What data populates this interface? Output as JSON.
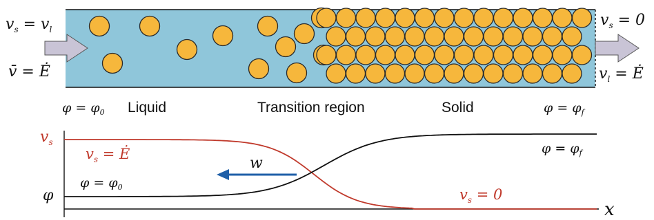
{
  "top_panel": {
    "inlet_velocity_eq": "v_s = v_l",
    "inlet_mean_eq": "v̄ = Ė",
    "outlet_solid_eq": "v_s = 0",
    "outlet_liquid_eq": "v_l = Ė",
    "phi_inlet": "φ = φ_0",
    "phi_outlet": "φ = φ_f",
    "region_liquid": "Liquid",
    "region_transition": "Transition region",
    "region_solid": "Solid"
  },
  "bottom_panel": {
    "y_label_vs": "v_s",
    "y_label_phi": "φ",
    "x_label": "x",
    "vs_left": "v_s = Ė",
    "vs_right": "v_s = 0",
    "phi_left": "φ = φ_0",
    "phi_right": "φ = φ_f",
    "front_velocity": "w"
  },
  "colors": {
    "liquid": "#8fc6da",
    "particle": "#f6b73c",
    "particle_outline": "#2a2a2a",
    "arrow": "#c9c4d6",
    "vs_curve": "#c0392b",
    "phi_curve": "#111111",
    "front_arrow": "#1f5fa8"
  },
  "icons": {
    "inlet_arrow": "right-arrow-icon",
    "outlet_arrow": "right-arrow-icon",
    "front_arrow": "left-arrow-icon"
  }
}
